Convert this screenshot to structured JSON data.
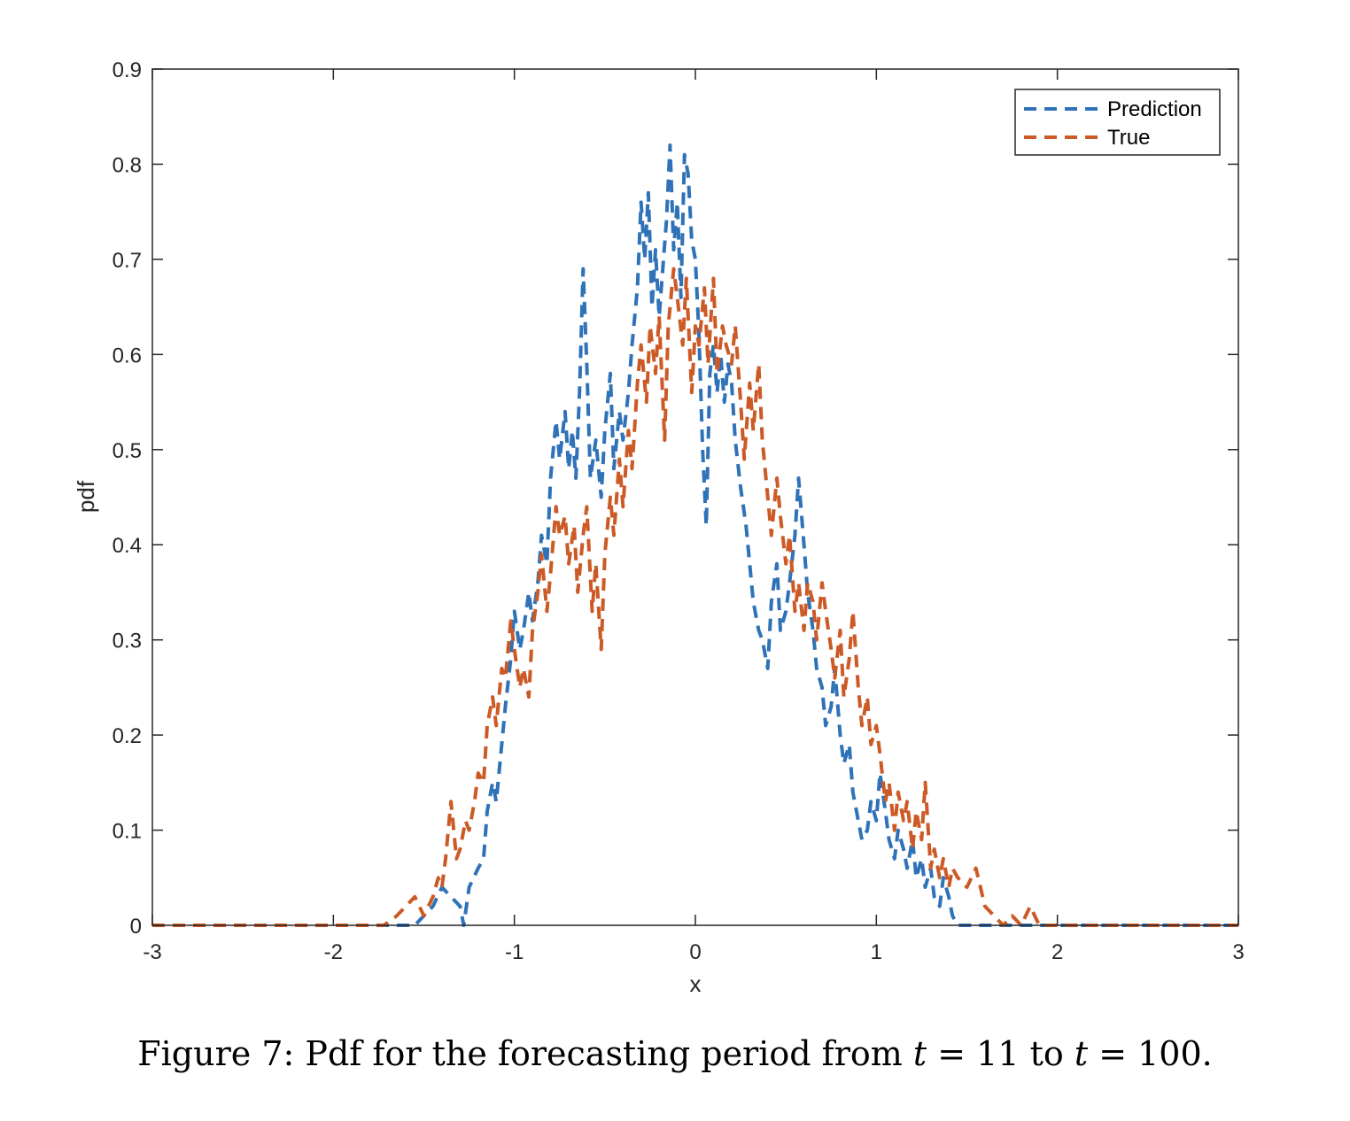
{
  "caption": {
    "prefix": "Figure 7: Pdf for the forecasting period from ",
    "var1": "t",
    "eq1": " = 11 to ",
    "var2": "t",
    "eq2": " = 100."
  },
  "chart_data": {
    "type": "line",
    "xlabel": "x",
    "ylabel": "pdf",
    "xlim": [
      -3,
      3
    ],
    "ylim": [
      0,
      0.9
    ],
    "xticks": [
      "-3",
      "-2",
      "-1",
      "0",
      "1",
      "2",
      "3"
    ],
    "yticks": [
      "0",
      "0.1",
      "0.2",
      "0.3",
      "0.4",
      "0.5",
      "0.6",
      "0.7",
      "0.8",
      "0.9"
    ],
    "grid": false,
    "legend_position": "top-right",
    "series": [
      {
        "name": "Prediction",
        "color": "#2f72b8",
        "line_style": "dashed",
        "x": [
          -3.0,
          -2.0,
          -1.7,
          -1.55,
          -1.5,
          -1.45,
          -1.4,
          -1.35,
          -1.3,
          -1.28,
          -1.25,
          -1.2,
          -1.17,
          -1.15,
          -1.12,
          -1.1,
          -1.07,
          -1.05,
          -1.02,
          -1.0,
          -0.97,
          -0.95,
          -0.92,
          -0.9,
          -0.87,
          -0.85,
          -0.82,
          -0.8,
          -0.77,
          -0.75,
          -0.72,
          -0.7,
          -0.68,
          -0.66,
          -0.64,
          -0.62,
          -0.6,
          -0.58,
          -0.55,
          -0.52,
          -0.5,
          -0.47,
          -0.45,
          -0.42,
          -0.4,
          -0.37,
          -0.35,
          -0.32,
          -0.3,
          -0.28,
          -0.26,
          -0.24,
          -0.22,
          -0.2,
          -0.18,
          -0.16,
          -0.14,
          -0.12,
          -0.1,
          -0.08,
          -0.06,
          -0.04,
          -0.02,
          0.0,
          0.02,
          0.04,
          0.06,
          0.08,
          0.1,
          0.12,
          0.14,
          0.16,
          0.18,
          0.2,
          0.22,
          0.25,
          0.28,
          0.3,
          0.32,
          0.35,
          0.37,
          0.4,
          0.42,
          0.45,
          0.47,
          0.5,
          0.52,
          0.55,
          0.57,
          0.6,
          0.62,
          0.65,
          0.67,
          0.7,
          0.72,
          0.75,
          0.77,
          0.8,
          0.82,
          0.85,
          0.87,
          0.9,
          0.92,
          0.95,
          0.97,
          1.0,
          1.02,
          1.05,
          1.07,
          1.1,
          1.12,
          1.15,
          1.17,
          1.2,
          1.22,
          1.25,
          1.27,
          1.3,
          1.32,
          1.35,
          1.37,
          1.4,
          1.42,
          1.45,
          1.5,
          1.55,
          1.6,
          1.7,
          2.0,
          3.0
        ],
        "y": [
          0.0,
          0.0,
          0.0,
          0.0,
          0.01,
          0.02,
          0.04,
          0.03,
          0.02,
          0.0,
          0.04,
          0.06,
          0.07,
          0.12,
          0.15,
          0.13,
          0.19,
          0.23,
          0.28,
          0.33,
          0.29,
          0.31,
          0.35,
          0.32,
          0.36,
          0.41,
          0.38,
          0.47,
          0.53,
          0.49,
          0.54,
          0.48,
          0.52,
          0.47,
          0.56,
          0.69,
          0.59,
          0.47,
          0.51,
          0.45,
          0.52,
          0.58,
          0.48,
          0.54,
          0.51,
          0.56,
          0.61,
          0.67,
          0.76,
          0.7,
          0.77,
          0.65,
          0.71,
          0.64,
          0.69,
          0.74,
          0.82,
          0.71,
          0.76,
          0.66,
          0.81,
          0.79,
          0.72,
          0.7,
          0.62,
          0.5,
          0.42,
          0.58,
          0.61,
          0.56,
          0.6,
          0.55,
          0.59,
          0.57,
          0.51,
          0.46,
          0.42,
          0.38,
          0.34,
          0.31,
          0.3,
          0.27,
          0.34,
          0.38,
          0.31,
          0.33,
          0.36,
          0.41,
          0.47,
          0.4,
          0.35,
          0.31,
          0.27,
          0.25,
          0.21,
          0.23,
          0.27,
          0.2,
          0.17,
          0.19,
          0.14,
          0.11,
          0.09,
          0.1,
          0.13,
          0.11,
          0.16,
          0.12,
          0.09,
          0.07,
          0.1,
          0.08,
          0.06,
          0.09,
          0.05,
          0.07,
          0.04,
          0.06,
          0.03,
          0.02,
          0.05,
          0.03,
          0.01,
          0.0,
          0.0,
          0.0,
          0.0,
          0.0,
          0.0,
          0.0
        ]
      },
      {
        "name": "True",
        "color": "#cc5a26",
        "line_style": "dashed",
        "x": [
          -3.0,
          -2.0,
          -1.72,
          -1.65,
          -1.6,
          -1.55,
          -1.5,
          -1.45,
          -1.42,
          -1.4,
          -1.38,
          -1.35,
          -1.32,
          -1.3,
          -1.27,
          -1.25,
          -1.22,
          -1.2,
          -1.17,
          -1.15,
          -1.12,
          -1.1,
          -1.07,
          -1.05,
          -1.02,
          -1.0,
          -0.97,
          -0.95,
          -0.92,
          -0.9,
          -0.87,
          -0.85,
          -0.82,
          -0.8,
          -0.77,
          -0.75,
          -0.72,
          -0.7,
          -0.67,
          -0.65,
          -0.62,
          -0.6,
          -0.57,
          -0.55,
          -0.52,
          -0.5,
          -0.47,
          -0.45,
          -0.42,
          -0.4,
          -0.37,
          -0.35,
          -0.32,
          -0.3,
          -0.27,
          -0.25,
          -0.22,
          -0.2,
          -0.17,
          -0.15,
          -0.12,
          -0.1,
          -0.07,
          -0.05,
          -0.02,
          0.0,
          0.02,
          0.05,
          0.07,
          0.1,
          0.12,
          0.15,
          0.17,
          0.2,
          0.22,
          0.25,
          0.27,
          0.3,
          0.32,
          0.35,
          0.37,
          0.4,
          0.42,
          0.45,
          0.47,
          0.5,
          0.52,
          0.55,
          0.57,
          0.6,
          0.62,
          0.65,
          0.67,
          0.7,
          0.72,
          0.75,
          0.77,
          0.8,
          0.82,
          0.85,
          0.87,
          0.9,
          0.92,
          0.95,
          0.97,
          1.0,
          1.02,
          1.05,
          1.07,
          1.1,
          1.12,
          1.15,
          1.17,
          1.2,
          1.22,
          1.25,
          1.27,
          1.3,
          1.32,
          1.35,
          1.37,
          1.4,
          1.42,
          1.45,
          1.5,
          1.55,
          1.6,
          1.65,
          1.7,
          1.75,
          1.8,
          1.85,
          1.9,
          2.0,
          3.0
        ],
        "y": [
          0.0,
          0.0,
          0.0,
          0.01,
          0.02,
          0.03,
          0.01,
          0.03,
          0.05,
          0.04,
          0.07,
          0.13,
          0.07,
          0.08,
          0.11,
          0.1,
          0.13,
          0.16,
          0.15,
          0.21,
          0.24,
          0.21,
          0.27,
          0.26,
          0.32,
          0.29,
          0.25,
          0.27,
          0.24,
          0.31,
          0.35,
          0.39,
          0.33,
          0.37,
          0.44,
          0.41,
          0.43,
          0.38,
          0.42,
          0.35,
          0.41,
          0.44,
          0.33,
          0.38,
          0.29,
          0.39,
          0.45,
          0.41,
          0.49,
          0.44,
          0.52,
          0.48,
          0.57,
          0.61,
          0.55,
          0.63,
          0.58,
          0.64,
          0.51,
          0.63,
          0.69,
          0.66,
          0.61,
          0.68,
          0.56,
          0.63,
          0.61,
          0.67,
          0.59,
          0.68,
          0.58,
          0.63,
          0.61,
          0.59,
          0.63,
          0.55,
          0.49,
          0.57,
          0.52,
          0.59,
          0.51,
          0.45,
          0.41,
          0.47,
          0.43,
          0.38,
          0.41,
          0.33,
          0.36,
          0.31,
          0.36,
          0.34,
          0.3,
          0.36,
          0.33,
          0.29,
          0.26,
          0.31,
          0.24,
          0.28,
          0.33,
          0.25,
          0.21,
          0.24,
          0.19,
          0.21,
          0.18,
          0.13,
          0.15,
          0.1,
          0.14,
          0.11,
          0.13,
          0.08,
          0.12,
          0.09,
          0.15,
          0.06,
          0.08,
          0.05,
          0.07,
          0.04,
          0.06,
          0.05,
          0.04,
          0.06,
          0.02,
          0.01,
          0.0,
          0.01,
          0.0,
          0.02,
          0.0,
          0.0,
          0.0
        ]
      }
    ]
  }
}
